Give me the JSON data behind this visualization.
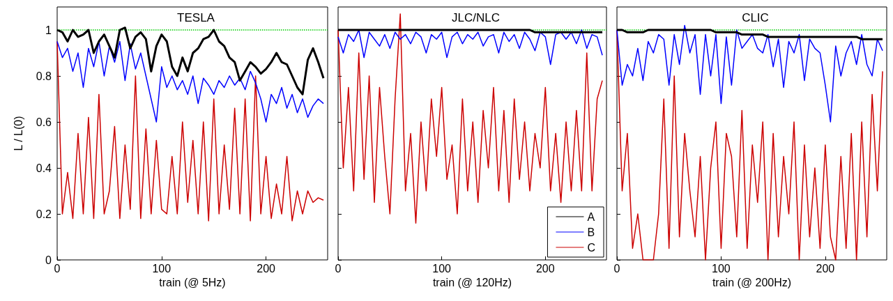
{
  "chart_data": [
    {
      "type": "line",
      "title": "TESLA",
      "xlabel": "train (@ 5Hz)",
      "ylabel": "L / L(0)",
      "xlim": [
        0,
        259
      ],
      "xticks": [
        0,
        100,
        200
      ],
      "ylim": [
        0,
        1.1
      ],
      "yticks": [
        0,
        0.2,
        0.4,
        0.6,
        0.8,
        1
      ],
      "grid": false,
      "legend": false,
      "marker": "none",
      "line_style": "solid",
      "x": [
        0,
        5,
        10,
        15,
        20,
        25,
        30,
        35,
        40,
        45,
        50,
        55,
        60,
        65,
        70,
        75,
        80,
        85,
        90,
        95,
        100,
        105,
        110,
        115,
        120,
        125,
        130,
        135,
        140,
        145,
        150,
        155,
        160,
        165,
        170,
        175,
        180,
        185,
        190,
        195,
        200,
        205,
        210,
        215,
        220,
        225,
        230,
        235,
        240,
        245,
        250,
        255
      ],
      "ref_lines": [
        {
          "axis": "y",
          "value": 1,
          "color": "#00cc00",
          "line_style": "dotted"
        }
      ],
      "series": [
        {
          "color": "#000000",
          "values": [
            1.0,
            0.99,
            0.95,
            1.0,
            0.97,
            0.98,
            1.0,
            0.9,
            0.95,
            0.98,
            0.93,
            0.88,
            1.0,
            1.01,
            0.92,
            0.97,
            0.99,
            0.96,
            0.82,
            0.93,
            0.98,
            0.95,
            0.84,
            0.8,
            0.88,
            0.82,
            0.9,
            0.92,
            0.96,
            0.97,
            1.0,
            0.95,
            0.93,
            0.88,
            0.86,
            0.78,
            0.82,
            0.86,
            0.84,
            0.81,
            0.83,
            0.86,
            0.9,
            0.86,
            0.85,
            0.8,
            0.75,
            0.72,
            0.87,
            0.92,
            0.86,
            0.79
          ]
        },
        {
          "color": "#0000ff",
          "values": [
            0.95,
            0.88,
            0.92,
            0.82,
            0.9,
            0.75,
            0.92,
            0.84,
            0.95,
            0.8,
            0.93,
            0.86,
            0.95,
            0.78,
            0.94,
            0.83,
            0.9,
            0.8,
            0.7,
            0.6,
            0.84,
            0.75,
            0.8,
            0.74,
            0.78,
            0.72,
            0.8,
            0.68,
            0.79,
            0.76,
            0.72,
            0.78,
            0.75,
            0.8,
            0.76,
            0.79,
            0.74,
            0.82,
            0.77,
            0.7,
            0.6,
            0.72,
            0.68,
            0.75,
            0.66,
            0.72,
            0.64,
            0.7,
            0.62,
            0.67,
            0.7,
            0.68
          ]
        },
        {
          "color": "#cc0000",
          "values": [
            0.95,
            0.2,
            0.38,
            0.18,
            0.55,
            0.2,
            0.62,
            0.18,
            0.72,
            0.2,
            0.3,
            0.58,
            0.18,
            0.5,
            0.22,
            0.8,
            0.18,
            0.57,
            0.2,
            0.52,
            0.22,
            0.2,
            0.45,
            0.2,
            0.6,
            0.25,
            0.52,
            0.2,
            0.6,
            0.17,
            0.7,
            0.2,
            0.5,
            0.22,
            0.66,
            0.2,
            0.7,
            0.17,
            0.8,
            0.2,
            0.45,
            0.18,
            0.33,
            0.2,
            0.45,
            0.17,
            0.3,
            0.2,
            0.3,
            0.25,
            0.27,
            0.26
          ]
        }
      ]
    },
    {
      "type": "line",
      "title": "JLC/NLC",
      "xlabel": "train (@ 120Hz)",
      "xlim": [
        0,
        259
      ],
      "xticks": [
        0,
        100,
        200
      ],
      "ylim": [
        0,
        1.1
      ],
      "yticks": [
        0,
        0.2,
        0.4,
        0.6,
        0.8,
        1
      ],
      "tick_labels": "x",
      "grid": false,
      "legend": "bottom right",
      "marker": "none",
      "line_style": "solid",
      "x": [
        0,
        5,
        10,
        15,
        20,
        25,
        30,
        35,
        40,
        45,
        50,
        55,
        60,
        65,
        70,
        75,
        80,
        85,
        90,
        95,
        100,
        105,
        110,
        115,
        120,
        125,
        130,
        135,
        140,
        145,
        150,
        155,
        160,
        165,
        170,
        175,
        180,
        185,
        190,
        195,
        200,
        205,
        210,
        215,
        220,
        225,
        230,
        235,
        240,
        245,
        250,
        255
      ],
      "ref_lines": [
        {
          "axis": "y",
          "value": 1,
          "color": "#00cc00",
          "line_style": "dotted"
        }
      ],
      "series": [
        {
          "name": "A",
          "color": "#000000",
          "values": [
            1.0,
            1.0,
            1.0,
            1.0,
            1.0,
            1.0,
            1.0,
            1.0,
            1.0,
            1.0,
            1.0,
            1.0,
            1.0,
            1.0,
            1.0,
            1.0,
            1.0,
            1.0,
            1.0,
            1.0,
            1.0,
            1.0,
            1.0,
            1.0,
            1.0,
            1.0,
            1.0,
            1.0,
            1.0,
            1.0,
            1.0,
            1.0,
            1.0,
            1.0,
            1.0,
            1.0,
            1.0,
            1.0,
            0.99,
            0.99,
            0.99,
            0.99,
            0.99,
            0.99,
            0.99,
            0.99,
            0.99,
            0.99,
            0.99,
            0.99,
            0.99,
            0.99
          ]
        },
        {
          "name": "B",
          "color": "#0000ff",
          "values": [
            0.97,
            0.9,
            0.98,
            0.95,
            1.0,
            0.88,
            0.99,
            0.96,
            0.93,
            0.98,
            0.92,
            0.99,
            0.96,
            0.98,
            0.94,
            0.99,
            0.97,
            0.9,
            0.98,
            0.96,
            0.99,
            0.88,
            0.97,
            0.99,
            0.94,
            0.98,
            0.96,
            0.99,
            0.93,
            0.97,
            0.98,
            0.9,
            0.99,
            0.95,
            0.98,
            0.92,
            0.99,
            0.96,
            0.91,
            0.99,
            0.97,
            0.85,
            0.98,
            0.99,
            0.96,
            0.99,
            0.94,
            1.0,
            0.92,
            0.98,
            0.97,
            0.89
          ]
        },
        {
          "name": "C",
          "color": "#cc0000",
          "values": [
            1.0,
            0.4,
            0.75,
            0.3,
            0.9,
            0.35,
            0.8,
            0.25,
            0.75,
            0.45,
            0.2,
            0.7,
            1.07,
            0.3,
            0.55,
            0.16,
            0.6,
            0.3,
            0.7,
            0.45,
            0.75,
            0.35,
            0.5,
            0.2,
            0.7,
            0.3,
            0.6,
            0.25,
            0.65,
            0.4,
            0.75,
            0.3,
            0.65,
            0.25,
            0.7,
            0.35,
            0.6,
            0.3,
            0.55,
            0.4,
            0.75,
            0.3,
            0.55,
            0.25,
            0.6,
            0.3,
            0.65,
            0.3,
            0.9,
            0.3,
            0.7,
            0.78
          ]
        }
      ]
    },
    {
      "type": "line",
      "title": "CLIC",
      "xlabel": "train (@ 200Hz)",
      "xlim": [
        0,
        259
      ],
      "xticks": [
        0,
        100,
        200
      ],
      "ylim": [
        0,
        1.1
      ],
      "yticks": [
        0,
        0.2,
        0.4,
        0.6,
        0.8,
        1
      ],
      "tick_labels": "x",
      "grid": false,
      "legend": false,
      "marker": "none",
      "line_style": "solid",
      "x": [
        0,
        5,
        10,
        15,
        20,
        25,
        30,
        35,
        40,
        45,
        50,
        55,
        60,
        65,
        70,
        75,
        80,
        85,
        90,
        95,
        100,
        105,
        110,
        115,
        120,
        125,
        130,
        135,
        140,
        145,
        150,
        155,
        160,
        165,
        170,
        175,
        180,
        185,
        190,
        195,
        200,
        205,
        210,
        215,
        220,
        225,
        230,
        235,
        240,
        245,
        250,
        255
      ],
      "ref_lines": [
        {
          "axis": "y",
          "value": 1,
          "color": "#00cc00",
          "line_style": "dotted"
        }
      ],
      "series": [
        {
          "color": "#000000",
          "values": [
            1.0,
            1.0,
            0.99,
            0.99,
            0.99,
            0.99,
            1.0,
            1.0,
            1.0,
            1.0,
            1.0,
            1.0,
            1.0,
            1.0,
            1.0,
            1.0,
            1.0,
            1.0,
            1.0,
            0.99,
            0.99,
            0.99,
            0.99,
            0.99,
            0.98,
            0.98,
            0.98,
            0.98,
            0.98,
            0.97,
            0.97,
            0.97,
            0.97,
            0.97,
            0.97,
            0.97,
            0.97,
            0.97,
            0.97,
            0.97,
            0.97,
            0.97,
            0.97,
            0.97,
            0.97,
            0.97,
            0.97,
            0.96,
            0.96,
            0.96,
            0.96,
            0.96
          ]
        },
        {
          "color": "#0000ff",
          "values": [
            1.0,
            0.76,
            0.85,
            0.8,
            0.92,
            0.78,
            0.95,
            0.9,
            0.98,
            0.96,
            0.76,
            0.98,
            0.85,
            1.02,
            0.9,
            0.98,
            0.72,
            0.98,
            0.8,
            0.98,
            0.68,
            0.97,
            0.76,
            1.0,
            0.92,
            0.95,
            0.98,
            0.92,
            0.9,
            0.98,
            0.84,
            0.96,
            0.75,
            0.95,
            0.9,
            0.98,
            0.78,
            0.96,
            0.92,
            0.9,
            0.76,
            0.6,
            0.93,
            0.8,
            0.9,
            0.95,
            0.85,
            0.98,
            0.85,
            0.8,
            0.96,
            0.91
          ]
        },
        {
          "color": "#cc0000",
          "values": [
            1.0,
            0.3,
            0.55,
            0.05,
            0.2,
            0.0,
            0.0,
            0.0,
            0.2,
            0.7,
            0.05,
            0.8,
            0.1,
            0.55,
            0.3,
            0.1,
            0.45,
            0.0,
            0.4,
            0.6,
            0.05,
            0.55,
            0.45,
            0.1,
            0.65,
            0.05,
            0.5,
            0.25,
            0.6,
            0.0,
            0.55,
            0.1,
            0.45,
            0.2,
            0.6,
            0.0,
            0.5,
            0.1,
            0.4,
            0.05,
            0.5,
            0.1,
            0.0,
            0.45,
            0.05,
            0.55,
            0.0,
            0.6,
            0.1,
            0.72,
            0.3,
            0.82
          ]
        }
      ]
    }
  ]
}
